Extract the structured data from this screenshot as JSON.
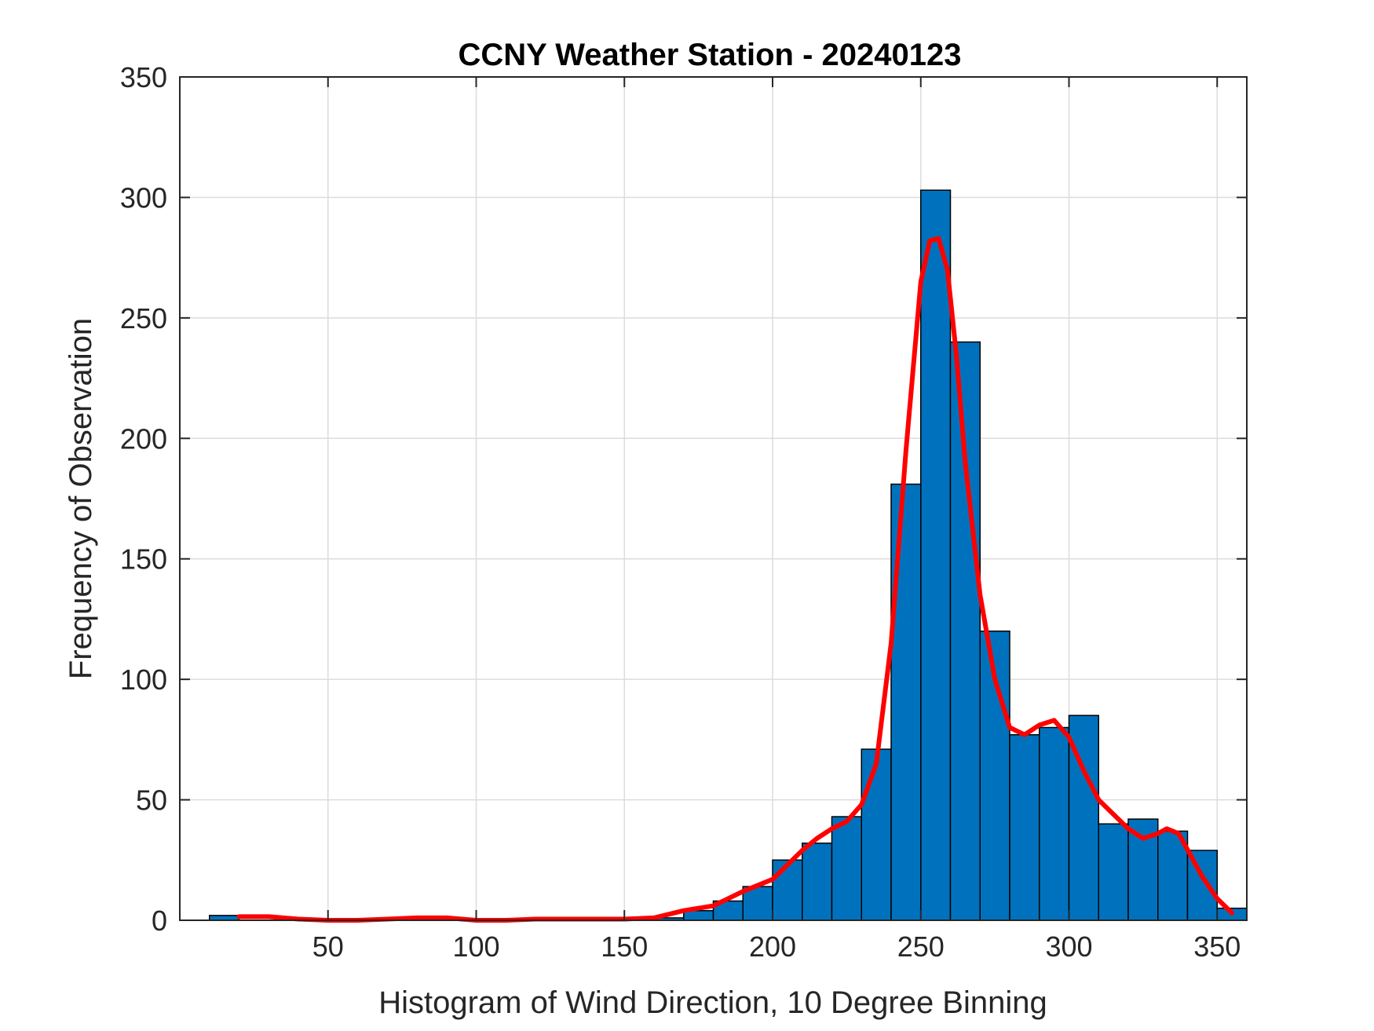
{
  "chart_data": {
    "type": "bar",
    "title": "CCNY Weather Station - 20240123",
    "xlabel": "Histogram of Wind Direction, 10 Degree Binning",
    "ylabel": "Frequency of Observation",
    "xlim": [
      0,
      360
    ],
    "ylim": [
      0,
      350
    ],
    "grid": true,
    "x_ticks": [
      50,
      100,
      150,
      200,
      250,
      300,
      350
    ],
    "y_ticks": [
      0,
      50,
      100,
      150,
      200,
      250,
      300,
      350
    ],
    "bar_color": "#0072BD",
    "bar_edge_color": "#000000",
    "bin_width": 10,
    "bins": [
      {
        "start": 10,
        "value": 2
      },
      {
        "start": 20,
        "value": 0
      },
      {
        "start": 30,
        "value": 0
      },
      {
        "start": 40,
        "value": 0
      },
      {
        "start": 50,
        "value": 0
      },
      {
        "start": 60,
        "value": 0
      },
      {
        "start": 70,
        "value": 0
      },
      {
        "start": 80,
        "value": 0
      },
      {
        "start": 90,
        "value": 0
      },
      {
        "start": 100,
        "value": 0
      },
      {
        "start": 110,
        "value": 0
      },
      {
        "start": 120,
        "value": 0
      },
      {
        "start": 130,
        "value": 0
      },
      {
        "start": 140,
        "value": 0
      },
      {
        "start": 150,
        "value": 0
      },
      {
        "start": 160,
        "value": 1
      },
      {
        "start": 170,
        "value": 4
      },
      {
        "start": 180,
        "value": 8
      },
      {
        "start": 190,
        "value": 14
      },
      {
        "start": 200,
        "value": 25
      },
      {
        "start": 210,
        "value": 32
      },
      {
        "start": 220,
        "value": 43
      },
      {
        "start": 230,
        "value": 71
      },
      {
        "start": 240,
        "value": 181
      },
      {
        "start": 250,
        "value": 303
      },
      {
        "start": 260,
        "value": 240
      },
      {
        "start": 270,
        "value": 120
      },
      {
        "start": 280,
        "value": 77
      },
      {
        "start": 290,
        "value": 80
      },
      {
        "start": 300,
        "value": 85
      },
      {
        "start": 310,
        "value": 40
      },
      {
        "start": 320,
        "value": 42
      },
      {
        "start": 330,
        "value": 37
      },
      {
        "start": 340,
        "value": 29
      },
      {
        "start": 350,
        "value": 5
      }
    ],
    "density_curve": {
      "color": "#FF0000",
      "x": [
        20,
        30,
        40,
        50,
        60,
        70,
        80,
        90,
        100,
        110,
        120,
        130,
        140,
        150,
        160,
        170,
        180,
        190,
        200,
        210,
        215,
        220,
        225,
        230,
        235,
        240,
        245,
        250,
        253,
        256,
        259,
        262,
        265,
        270,
        275,
        280,
        285,
        290,
        295,
        300,
        305,
        310,
        315,
        320,
        325,
        330,
        333,
        337,
        341,
        345,
        350,
        355
      ],
      "y": [
        1.5,
        1.5,
        0.5,
        0,
        0,
        0.5,
        1,
        1,
        0,
        0,
        0.5,
        0.5,
        0.5,
        0.5,
        1,
        4,
        6,
        12,
        17,
        29,
        34,
        38,
        41,
        48,
        65,
        115,
        195,
        265,
        282,
        283,
        270,
        235,
        190,
        135,
        100,
        80,
        77,
        81,
        83,
        76,
        62,
        50,
        44,
        38,
        34,
        36,
        38,
        36,
        27,
        18,
        9,
        3
      ]
    }
  }
}
